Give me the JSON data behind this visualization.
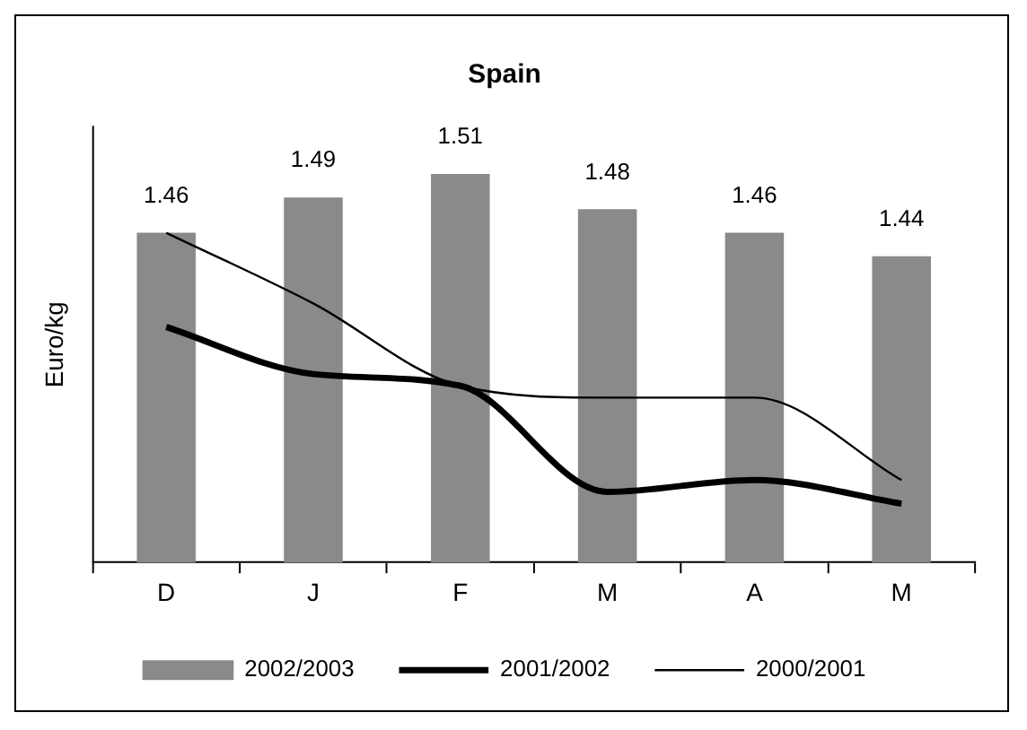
{
  "chart_data": {
    "type": "bar",
    "title": "Spain",
    "ylabel": "Euro/kg",
    "categories": [
      "D",
      "J",
      "F",
      "M",
      "A",
      "M"
    ],
    "series": [
      {
        "name": "2002/2003",
        "color": "#8a8a8a",
        "values": [
          1.46,
          1.49,
          1.51,
          1.48,
          1.46,
          1.44
        ],
        "value_labels": [
          "1.46",
          "1.49",
          "1.51",
          "1.48",
          "1.46",
          "1.44"
        ]
      },
      {
        "name": "2001/2002",
        "type": "line",
        "color": "#000000",
        "values": [
          1.38,
          1.34,
          1.33,
          1.24,
          1.25,
          1.23
        ]
      },
      {
        "name": "2000/2001",
        "type": "line",
        "color": "#000000",
        "values": [
          1.46,
          1.4,
          1.33,
          1.32,
          1.32,
          1.25
        ]
      }
    ],
    "ylim": [
      1.18,
      1.55
    ],
    "tick_labels": "x",
    "grid": false,
    "legend": "bottom",
    "marker": "none"
  }
}
